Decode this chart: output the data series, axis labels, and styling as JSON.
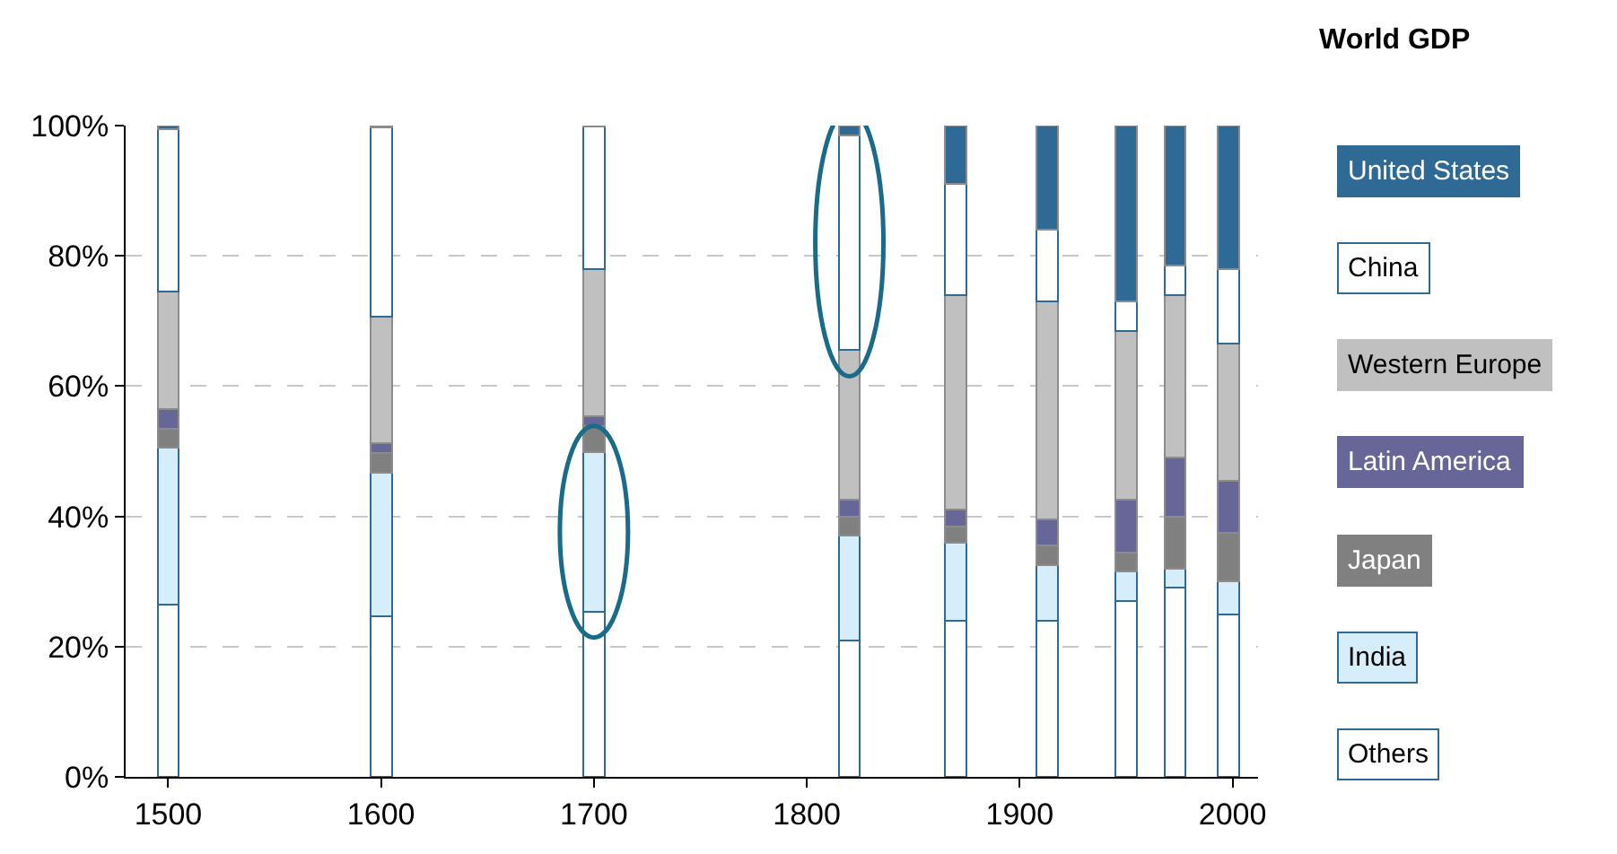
{
  "chart_data": {
    "type": "bar",
    "stacked": true,
    "title": "World GDP",
    "x": [
      1500,
      1600,
      1700,
      1820,
      1870,
      1913,
      1950,
      1973,
      1998
    ],
    "series": [
      {
        "name": "Others",
        "color": "#ffffff",
        "values": [
          26.5,
          24.7,
          25.4,
          21,
          24,
          24,
          27,
          29,
          25
        ]
      },
      {
        "name": "India",
        "color": "#d6eefc",
        "values": [
          24,
          22,
          24.5,
          16,
          12,
          8.5,
          4.5,
          3,
          5
        ]
      },
      {
        "name": "Japan",
        "color": "#808080",
        "values": [
          3,
          3,
          4,
          3,
          2.5,
          3,
          3,
          8,
          7.5
        ]
      },
      {
        "name": "Latin America",
        "color": "#666699",
        "values": [
          3,
          1.5,
          1.5,
          2.5,
          2.5,
          4,
          8,
          9,
          8
        ]
      },
      {
        "name": "Western Europe",
        "color": "#c0c0c0",
        "values": [
          18,
          19.5,
          22.5,
          23,
          33,
          33.5,
          26,
          25,
          21
        ]
      },
      {
        "name": "China",
        "color": "#ffffff",
        "values": [
          25,
          29,
          22,
          33,
          17,
          11,
          4.5,
          4.5,
          11.5
        ]
      },
      {
        "name": "United States",
        "color": "#2e6a94",
        "values": [
          0.5,
          0.3,
          0.1,
          1.5,
          9,
          16,
          27,
          21.5,
          22
        ]
      }
    ],
    "xlim": [
      1480,
      2012
    ],
    "xticks": [
      1500,
      1600,
      1700,
      1800,
      1900,
      2000
    ],
    "ylim": [
      0,
      100
    ],
    "yticks": [
      {
        "value": 0,
        "label": "0%"
      },
      {
        "value": 20,
        "label": "20%"
      },
      {
        "value": 40,
        "label": "40%"
      },
      {
        "value": 60,
        "label": "60%"
      },
      {
        "value": 80,
        "label": "80%"
      },
      {
        "value": 100,
        "label": "100%"
      }
    ],
    "grid": "y",
    "legend": "right"
  }
}
